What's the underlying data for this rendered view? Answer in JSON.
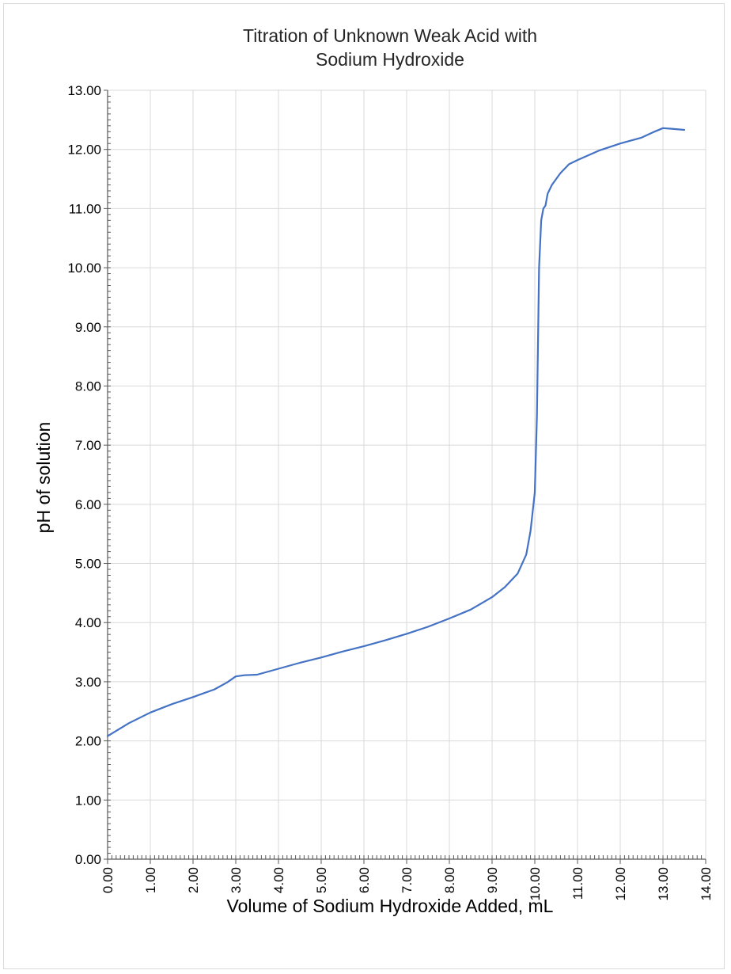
{
  "chart_data": {
    "type": "line",
    "title_lines": [
      "Titration of Unknown Weak Acid with",
      "Sodium Hydroxide"
    ],
    "xlabel": "Volume of Sodium Hydroxide Added, mL",
    "ylabel": "pH of solution",
    "xlim": [
      0,
      14
    ],
    "ylim": [
      0,
      13
    ],
    "x_ticks": [
      "0.00",
      "1.00",
      "2.00",
      "3.00",
      "4.00",
      "5.00",
      "6.00",
      "7.00",
      "8.00",
      "9.00",
      "10.00",
      "11.00",
      "12.00",
      "13.00",
      "14.00"
    ],
    "y_ticks": [
      "0.00",
      "1.00",
      "2.00",
      "3.00",
      "4.00",
      "5.00",
      "6.00",
      "7.00",
      "8.00",
      "9.00",
      "10.00",
      "11.00",
      "12.00",
      "13.00"
    ],
    "grid": true,
    "line_color": "#4472c4",
    "series": [
      {
        "x": [
          0.0,
          0.5,
          1.0,
          1.5,
          2.0,
          2.5,
          2.8,
          3.0,
          3.2,
          3.5,
          4.0,
          4.5,
          5.0,
          5.5,
          6.0,
          6.5,
          7.0,
          7.5,
          8.0,
          8.5,
          9.0,
          9.3,
          9.6,
          9.8,
          9.9,
          10.0,
          10.05,
          10.1,
          10.15,
          10.2,
          10.25,
          10.3,
          10.4,
          10.6,
          10.8,
          11.0,
          11.5,
          12.0,
          12.5,
          12.8,
          13.0,
          13.2,
          13.5
        ],
        "y": [
          2.08,
          2.3,
          2.48,
          2.62,
          2.74,
          2.87,
          2.99,
          3.09,
          3.11,
          3.12,
          3.22,
          3.32,
          3.41,
          3.51,
          3.6,
          3.7,
          3.81,
          3.93,
          4.07,
          4.22,
          4.43,
          4.6,
          4.83,
          5.15,
          5.55,
          6.2,
          7.5,
          10.0,
          10.8,
          11.0,
          11.05,
          11.25,
          11.4,
          11.6,
          11.75,
          11.82,
          11.98,
          12.1,
          12.2,
          12.3,
          12.36,
          12.35,
          12.33
        ]
      }
    ]
  }
}
